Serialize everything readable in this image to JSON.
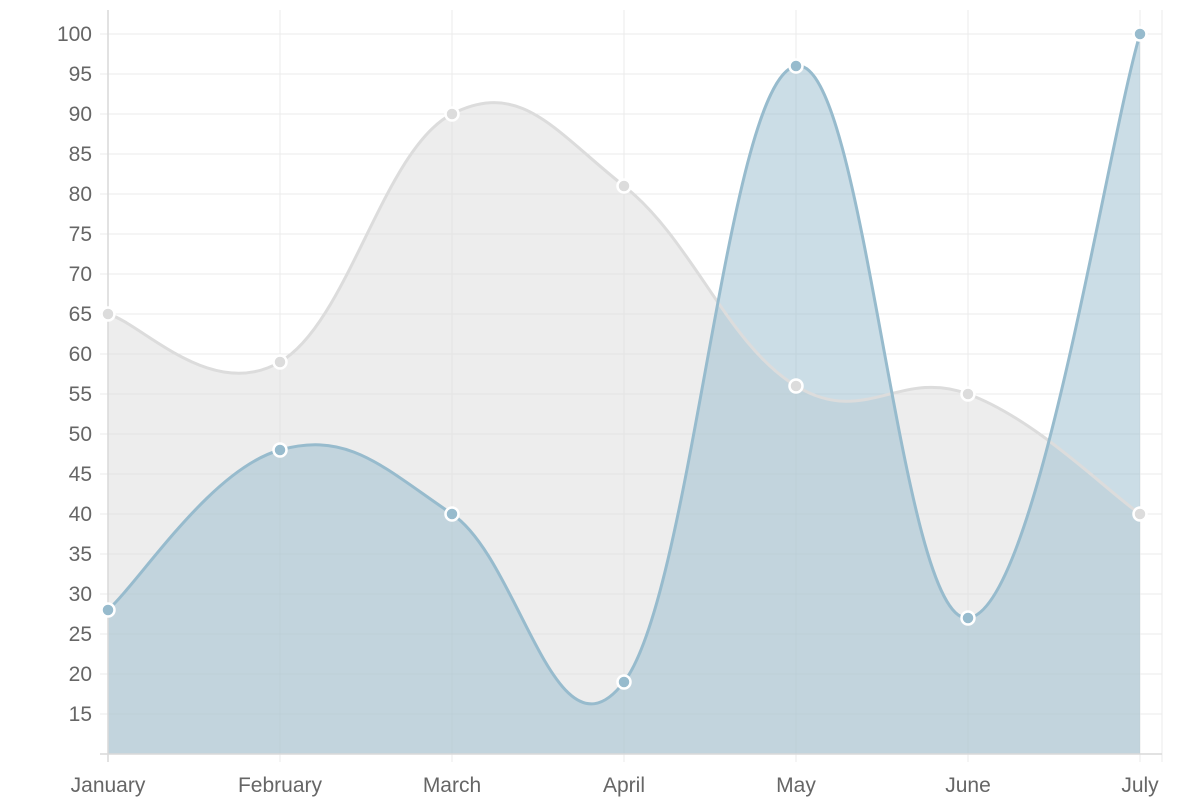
{
  "chart_data": {
    "type": "area",
    "title": "",
    "xlabel": "",
    "ylabel": "",
    "categories": [
      "January",
      "February",
      "March",
      "April",
      "May",
      "June",
      "July"
    ],
    "ylim": [
      10,
      100
    ],
    "yticks": [
      15,
      20,
      25,
      30,
      35,
      40,
      45,
      50,
      55,
      60,
      65,
      70,
      75,
      80,
      85,
      90,
      95,
      100
    ],
    "grid": true,
    "smooth": true,
    "series": [
      {
        "values": [
          65,
          59,
          90,
          81,
          56,
          55,
          40
        ],
        "line_color": "#dcdcdc",
        "fill_color": "#dcdcdc",
        "point_color": "#dcdcdc"
      },
      {
        "values": [
          28,
          48,
          40,
          19,
          96,
          27,
          100
        ],
        "line_color": "#97bbcd",
        "fill_color": "#97bbcd",
        "point_color": "#97bbcd"
      }
    ]
  }
}
